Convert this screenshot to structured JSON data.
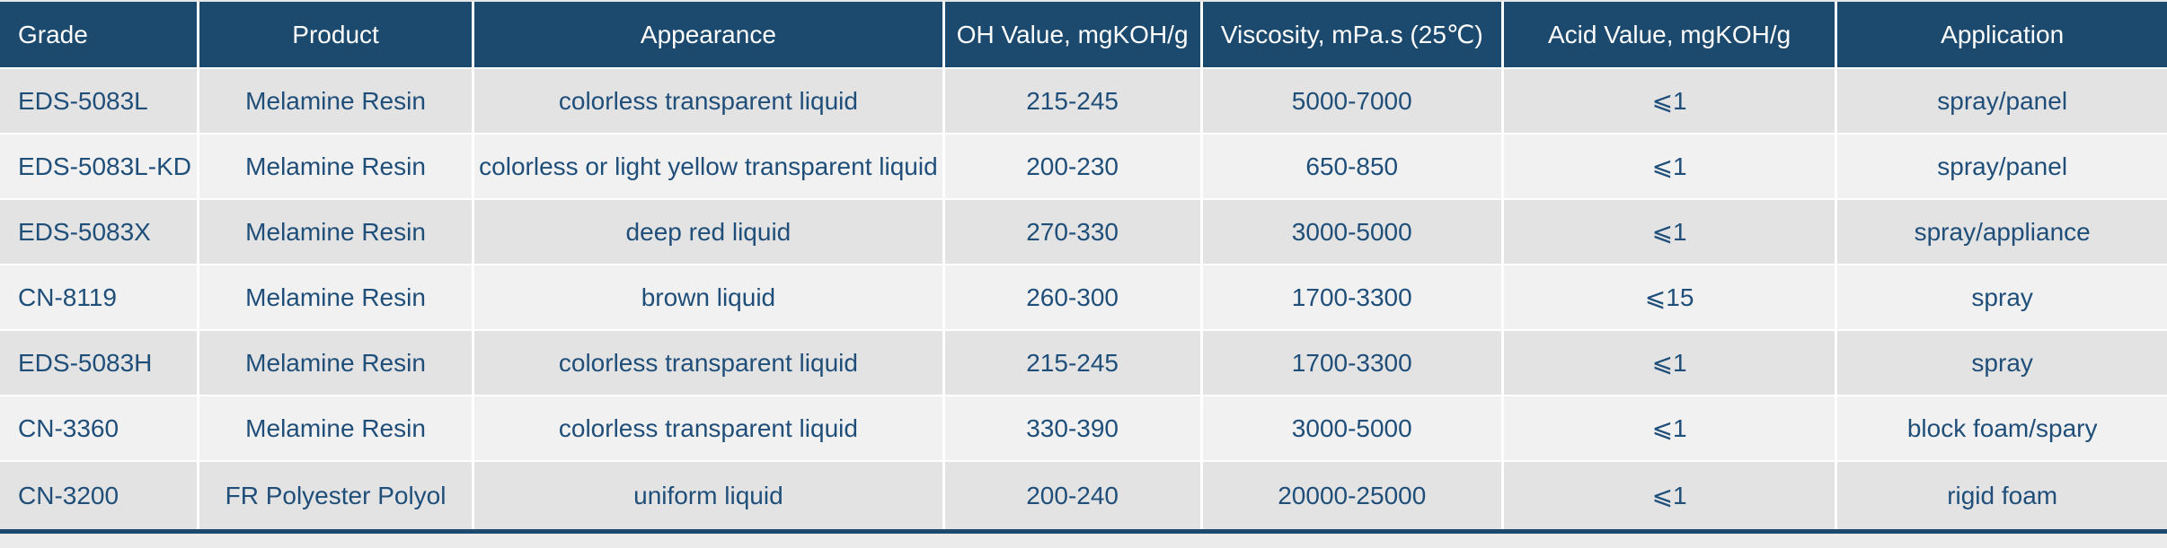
{
  "table": {
    "name": "product-specification-table",
    "colors": {
      "header_bg": "#1c4a6e",
      "header_text": "#ffffff",
      "cell_text": "#1f4e79",
      "row_odd_bg": "#e3e3e4",
      "row_even_bg": "#f1f1f2",
      "divider": "#ffffff",
      "border": "#1c4a6e"
    },
    "columns": [
      {
        "label": "Grade",
        "align": "left",
        "width": "9.2%"
      },
      {
        "label": "Product",
        "align": "center",
        "width": "12.7%"
      },
      {
        "label": "Appearance",
        "align": "center",
        "width": "21.7%"
      },
      {
        "label": "OH Value, mgKOH/g",
        "align": "center",
        "width": "11.9%"
      },
      {
        "label": "Viscosity, mPa.s (25℃)",
        "align": "center",
        "width": "13.9%"
      },
      {
        "label": "Acid Value, mgKOH/g",
        "align": "center",
        "width": "15.4%"
      },
      {
        "label": "Application",
        "align": "center",
        "width": "15.2%"
      }
    ],
    "rows": [
      [
        "EDS-5083L",
        "Melamine Resin",
        "colorless transparent liquid",
        "215-245",
        "5000-7000",
        "⩽1",
        "spray/panel"
      ],
      [
        "EDS-5083L-KD",
        "Melamine Resin",
        "colorless or light yellow transparent liquid",
        "200-230",
        "650-850",
        "⩽1",
        "spray/panel"
      ],
      [
        "EDS-5083X",
        "Melamine Resin",
        "deep red liquid",
        "270-330",
        "3000-5000",
        "⩽1",
        "spray/appliance"
      ],
      [
        "CN-8119",
        "Melamine Resin",
        "brown liquid",
        "260-300",
        "1700-3300",
        "⩽15",
        "spray"
      ],
      [
        "EDS-5083H",
        "Melamine Resin",
        "colorless transparent liquid",
        "215-245",
        "1700-3300",
        "⩽1",
        "spray"
      ],
      [
        "CN-3360",
        "Melamine Resin",
        "colorless transparent liquid",
        "330-390",
        "3000-5000",
        "⩽1",
        "block foam/spary"
      ],
      [
        "CN-3200",
        "FR Polyester Polyol",
        "uniform liquid",
        "200-240",
        "20000-25000",
        "⩽1",
        "rigid foam"
      ]
    ]
  }
}
